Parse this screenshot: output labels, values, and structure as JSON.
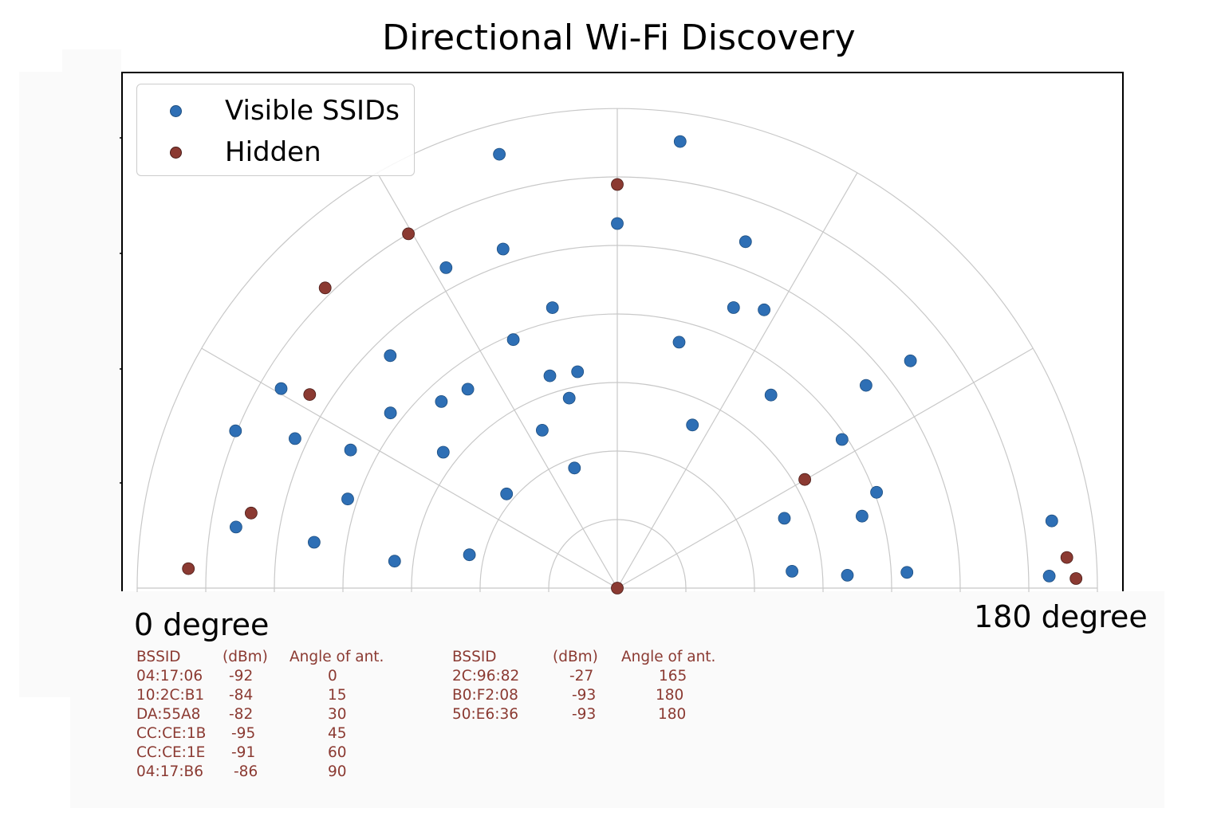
{
  "chart_data": {
    "type": "scatter",
    "subtype": "polar-half",
    "title": "Directional Wi-Fi Discovery",
    "angle_range_deg": [
      0,
      180
    ],
    "radial_rings": 7,
    "angle_gridlines_deg": [
      0,
      30,
      60,
      90,
      120,
      150,
      180
    ],
    "grid": true,
    "legend_placement": "top-left",
    "angle_labels": {
      "start": "0 degree",
      "end": "180 degree"
    },
    "series": [
      {
        "name": "Visible SSIDs",
        "color": "#2e6fb5",
        "points": [
          {
            "angle": 22.4,
            "r": 6.02
          },
          {
            "angle": 74.8,
            "r": 6.56
          },
          {
            "angle": 30.7,
            "r": 5.7
          },
          {
            "angle": 27.4,
            "r": 4.38
          },
          {
            "angle": 37.7,
            "r": 4.18
          },
          {
            "angle": 45.7,
            "r": 4.74
          },
          {
            "angle": 61.9,
            "r": 5.3
          },
          {
            "angle": 71.4,
            "r": 5.22
          },
          {
            "angle": 77.0,
            "r": 4.2
          },
          {
            "angle": 75.8,
            "r": 2.86
          },
          {
            "angle": 90.0,
            "r": 5.32
          },
          {
            "angle": 98.0,
            "r": 6.58
          },
          {
            "angle": 110.3,
            "r": 5.39
          },
          {
            "angle": 112.5,
            "r": 4.43
          },
          {
            "angle": 117.8,
            "r": 4.59
          },
          {
            "angle": 104.1,
            "r": 3.7
          },
          {
            "angle": 142.2,
            "r": 5.41
          },
          {
            "angle": 140.8,
            "r": 4.68
          },
          {
            "angle": 146.5,
            "r": 3.93
          },
          {
            "angle": 128.5,
            "r": 3.6
          },
          {
            "angle": 114.7,
            "r": 2.62
          },
          {
            "angle": 79.6,
            "r": 3.21
          },
          {
            "angle": 72.4,
            "r": 3.25
          },
          {
            "angle": 64.6,
            "r": 2.55
          },
          {
            "angle": 70.4,
            "r": 1.86
          },
          {
            "angle": 67.3,
            "r": 3.93
          },
          {
            "angle": 53.1,
            "r": 3.63
          },
          {
            "angle": 46.7,
            "r": 3.74
          },
          {
            "angle": 38.0,
            "r": 3.22
          },
          {
            "angle": 40.4,
            "r": 2.12
          },
          {
            "angle": 24.9,
            "r": 5.18
          },
          {
            "angle": 18.3,
            "r": 4.14
          },
          {
            "angle": 9.1,
            "r": 5.63
          },
          {
            "angle": 8.6,
            "r": 4.47
          },
          {
            "angle": 6.9,
            "r": 3.27
          },
          {
            "angle": 12.7,
            "r": 2.21
          },
          {
            "angle": 157.3,
            "r": 2.64
          },
          {
            "angle": 159.7,
            "r": 4.03
          },
          {
            "angle": 176.9,
            "r": 4.23
          },
          {
            "angle": 163.6,
            "r": 3.72
          },
          {
            "angle": 174.5,
            "r": 2.56
          },
          {
            "angle": 176.8,
            "r": 3.36
          },
          {
            "angle": 178.4,
            "r": 6.3
          },
          {
            "angle": 171.2,
            "r": 6.41
          }
        ]
      },
      {
        "name": "Hidden",
        "color": "#8b3a32",
        "points": [
          {
            "angle": 0,
            "r": 0
          },
          {
            "angle": 90.0,
            "r": 5.89
          },
          {
            "angle": 59.5,
            "r": 6.0
          },
          {
            "angle": 45.8,
            "r": 6.11
          },
          {
            "angle": 32.2,
            "r": 5.3
          },
          {
            "angle": 11.6,
            "r": 5.45
          },
          {
            "angle": 2.6,
            "r": 6.26
          },
          {
            "angle": 149.9,
            "r": 3.16
          },
          {
            "angle": 176.1,
            "r": 6.57
          },
          {
            "angle": 178.8,
            "r": 6.69
          }
        ]
      }
    ]
  },
  "tables": [
    {
      "headers": [
        "BSSID",
        "(dBm)",
        "Angle of ant."
      ],
      "rows": [
        [
          "04:17:06",
          "-92",
          "0"
        ],
        [
          "10:2C:B1",
          "-84",
          "15"
        ],
        [
          "DA:55A8",
          "-82",
          "30"
        ],
        [
          "CC:CE:1B",
          "-95",
          "45"
        ],
        [
          "CC:CE:1E",
          "-91",
          "60"
        ],
        [
          "04:17:B6",
          "-86",
          "90"
        ]
      ]
    },
    {
      "headers": [
        "BSSID",
        "(dBm)",
        "Angle of ant."
      ],
      "rows": [
        [
          "2C:96:82",
          "-27",
          "165"
        ],
        [
          "B0:F2:08",
          "-93",
          "180"
        ],
        [
          "50:E6:36",
          "-93",
          "180"
        ]
      ]
    }
  ],
  "colors": {
    "visible": "#2e6fb5",
    "hidden": "#8b3a32",
    "table_text": "#8b3a32",
    "grid": "#c8c8c8"
  }
}
